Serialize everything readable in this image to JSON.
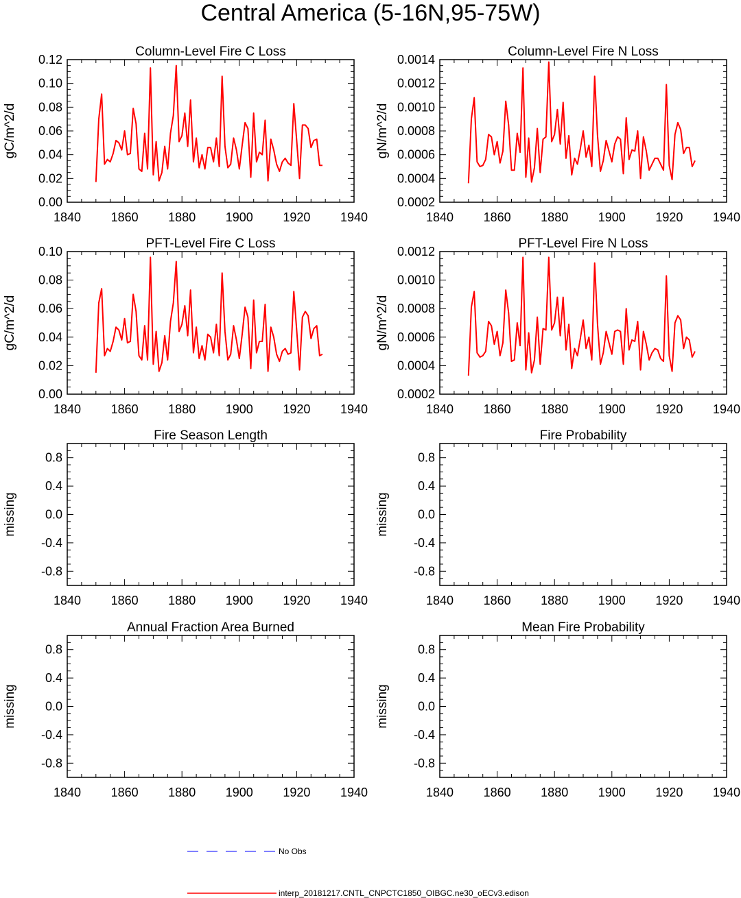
{
  "figure": {
    "title": "Central America (5-16N,95-75W)"
  },
  "legend": {
    "entries": [
      {
        "label": "No Obs",
        "color": "#3333ff",
        "style": "dashed"
      },
      {
        "label": "interp_20181217.CNTL_CNPCTC1850_OIBGC.ne30_oECv3.edison",
        "color": "#ff0000",
        "style": "solid"
      }
    ]
  },
  "chart_data": [
    {
      "type": "line",
      "title": "Column-Level Fire C Loss",
      "ylabel": "gC/m^2/d",
      "xlim": [
        1840,
        1940
      ],
      "ylim": [
        0.0,
        0.12
      ],
      "xticks": [
        "1840",
        "1860",
        "1880",
        "1900",
        "1920",
        "1940"
      ],
      "yticks": [
        {
          "v": 0.0,
          "t": "0.00"
        },
        {
          "v": 0.02,
          "t": "0.02"
        },
        {
          "v": 0.04,
          "t": "0.04"
        },
        {
          "v": 0.06,
          "t": "0.06"
        },
        {
          "v": 0.08,
          "t": "0.08"
        },
        {
          "v": 0.1,
          "t": "0.10"
        },
        {
          "v": 0.12,
          "t": "0.12"
        }
      ],
      "series": [
        {
          "color": "#ff0000",
          "x_start": 1850,
          "values": [
            0.017,
            0.07,
            0.091,
            0.032,
            0.036,
            0.034,
            0.041,
            0.052,
            0.05,
            0.044,
            0.06,
            0.04,
            0.041,
            0.079,
            0.066,
            0.028,
            0.026,
            0.058,
            0.028,
            0.113,
            0.023,
            0.051,
            0.018,
            0.025,
            0.047,
            0.028,
            0.058,
            0.073,
            0.115,
            0.051,
            0.056,
            0.075,
            0.047,
            0.086,
            0.034,
            0.054,
            0.029,
            0.04,
            0.028,
            0.046,
            0.046,
            0.034,
            0.054,
            0.03,
            0.106,
            0.047,
            0.029,
            0.032,
            0.054,
            0.044,
            0.028,
            0.048,
            0.067,
            0.062,
            0.021,
            0.075,
            0.034,
            0.042,
            0.04,
            0.069,
            0.018,
            0.053,
            0.044,
            0.032,
            0.026,
            0.034,
            0.037,
            0.033,
            0.031,
            0.083,
            0.052,
            0.02,
            0.065,
            0.065,
            0.062,
            0.046,
            0.052,
            0.053,
            0.031,
            0.031
          ]
        }
      ]
    },
    {
      "type": "line",
      "title": "Column-Level Fire N Loss",
      "ylabel": "gN/m^2/d",
      "xlim": [
        1840,
        1940
      ],
      "ylim": [
        0.0002,
        0.0014
      ],
      "xticks": [
        "1840",
        "1860",
        "1880",
        "1900",
        "1920",
        "1940"
      ],
      "yticks": [
        {
          "v": 0.0002,
          "t": "0.0002"
        },
        {
          "v": 0.0004,
          "t": "0.0004"
        },
        {
          "v": 0.0006,
          "t": "0.0006"
        },
        {
          "v": 0.0008,
          "t": "0.0008"
        },
        {
          "v": 0.001,
          "t": "0.0010"
        },
        {
          "v": 0.0012,
          "t": "0.0012"
        },
        {
          "v": 0.0014,
          "t": "0.0014"
        }
      ],
      "series": [
        {
          "color": "#ff0000",
          "x_start": 1850,
          "values": [
            0.00036,
            0.0009,
            0.00108,
            0.00054,
            0.0005,
            0.00051,
            0.00056,
            0.00077,
            0.00075,
            0.0006,
            0.00071,
            0.00053,
            0.00063,
            0.00105,
            0.00085,
            0.00047,
            0.00047,
            0.00078,
            0.00062,
            0.00133,
            0.00041,
            0.00074,
            0.00037,
            0.00049,
            0.00082,
            0.00045,
            0.00073,
            0.00075,
            0.00138,
            0.00071,
            0.00077,
            0.00098,
            0.00069,
            0.00104,
            0.00057,
            0.00076,
            0.00043,
            0.00057,
            0.00052,
            0.00065,
            0.0008,
            0.00058,
            0.00068,
            0.0005,
            0.00126,
            0.00076,
            0.00046,
            0.00055,
            0.00072,
            0.00063,
            0.00054,
            0.00069,
            0.00075,
            0.00073,
            0.00044,
            0.00091,
            0.00056,
            0.00064,
            0.00063,
            0.0008,
            0.0004,
            0.00075,
            0.00063,
            0.00047,
            0.00052,
            0.00057,
            0.00057,
            0.00052,
            0.00047,
            0.00119,
            0.00051,
            0.00039,
            0.00077,
            0.00087,
            0.00081,
            0.00061,
            0.00066,
            0.00066,
            0.0005,
            0.00055
          ]
        }
      ]
    },
    {
      "type": "line",
      "title": "PFT-Level Fire C Loss",
      "ylabel": "gC/m^2/d",
      "xlim": [
        1840,
        1940
      ],
      "ylim": [
        0.0,
        0.1
      ],
      "xticks": [
        "1840",
        "1860",
        "1880",
        "1900",
        "1920",
        "1940"
      ],
      "yticks": [
        {
          "v": 0.0,
          "t": "0.00"
        },
        {
          "v": 0.02,
          "t": "0.02"
        },
        {
          "v": 0.04,
          "t": "0.04"
        },
        {
          "v": 0.06,
          "t": "0.06"
        },
        {
          "v": 0.08,
          "t": "0.08"
        },
        {
          "v": 0.1,
          "t": "0.10"
        }
      ],
      "series": [
        {
          "color": "#ff0000",
          "x_start": 1850,
          "values": [
            0.015,
            0.064,
            0.074,
            0.027,
            0.032,
            0.03,
            0.037,
            0.047,
            0.045,
            0.038,
            0.053,
            0.036,
            0.037,
            0.07,
            0.058,
            0.027,
            0.024,
            0.048,
            0.024,
            0.096,
            0.021,
            0.044,
            0.016,
            0.022,
            0.041,
            0.024,
            0.051,
            0.064,
            0.093,
            0.044,
            0.049,
            0.062,
            0.041,
            0.073,
            0.029,
            0.047,
            0.025,
            0.034,
            0.024,
            0.042,
            0.04,
            0.029,
            0.049,
            0.027,
            0.085,
            0.044,
            0.024,
            0.028,
            0.048,
            0.038,
            0.025,
            0.042,
            0.061,
            0.054,
            0.018,
            0.066,
            0.029,
            0.037,
            0.037,
            0.063,
            0.016,
            0.047,
            0.04,
            0.028,
            0.023,
            0.03,
            0.032,
            0.028,
            0.029,
            0.072,
            0.045,
            0.017,
            0.054,
            0.058,
            0.055,
            0.039,
            0.046,
            0.048,
            0.027,
            0.028
          ]
        }
      ]
    },
    {
      "type": "line",
      "title": "PFT-Level Fire N Loss",
      "ylabel": "gN/m^2/d",
      "xlim": [
        1840,
        1940
      ],
      "ylim": [
        0.0002,
        0.0012
      ],
      "xticks": [
        "1840",
        "1860",
        "1880",
        "1900",
        "1920",
        "1940"
      ],
      "yticks": [
        {
          "v": 0.0002,
          "t": "0.0002"
        },
        {
          "v": 0.0004,
          "t": "0.0004"
        },
        {
          "v": 0.0006,
          "t": "0.0006"
        },
        {
          "v": 0.0008,
          "t": "0.0008"
        },
        {
          "v": 0.001,
          "t": "0.0010"
        },
        {
          "v": 0.0012,
          "t": "0.0012"
        }
      ],
      "series": [
        {
          "color": "#ff0000",
          "x_start": 1850,
          "values": [
            0.00033,
            0.00081,
            0.00092,
            0.00049,
            0.00046,
            0.00047,
            0.0005,
            0.00071,
            0.00068,
            0.00055,
            0.00064,
            0.00047,
            0.00056,
            0.00093,
            0.00077,
            0.00043,
            0.00044,
            0.0007,
            0.00054,
            0.00116,
            0.00037,
            0.00063,
            0.00035,
            0.00044,
            0.00074,
            0.00041,
            0.00066,
            0.00065,
            0.00116,
            0.00065,
            0.0007,
            0.00088,
            0.00061,
            0.00088,
            0.00051,
            0.00069,
            0.00038,
            0.00052,
            0.00047,
            0.00059,
            0.00072,
            0.00052,
            0.0006,
            0.00044,
            0.00112,
            0.00069,
            0.00041,
            0.00049,
            0.00064,
            0.00056,
            0.00048,
            0.00064,
            0.00065,
            0.00064,
            0.00041,
            0.0008,
            0.00051,
            0.00058,
            0.00057,
            0.00071,
            0.00037,
            0.00064,
            0.00055,
            0.00044,
            0.00049,
            0.00052,
            0.00051,
            0.00045,
            0.00043,
            0.00103,
            0.00047,
            0.00036,
            0.0007,
            0.00075,
            0.00072,
            0.00052,
            0.0006,
            0.00058,
            0.00046,
            0.0005
          ]
        }
      ]
    },
    {
      "type": "line",
      "title": "Fire Season Length",
      "ylabel": "missing",
      "xlim": [
        1840,
        1940
      ],
      "ylim": [
        -1.0,
        1.0
      ],
      "xticks": [
        "1840",
        "1860",
        "1880",
        "1900",
        "1920",
        "1940"
      ],
      "yticks": [
        {
          "v": -0.8,
          "t": "-0.8"
        },
        {
          "v": -0.4,
          "t": "-0.4"
        },
        {
          "v": 0.0,
          "t": "0.0"
        },
        {
          "v": 0.4,
          "t": "0.4"
        },
        {
          "v": 0.8,
          "t": "0.8"
        }
      ],
      "series": []
    },
    {
      "type": "line",
      "title": "Fire Probability",
      "ylabel": "missing",
      "xlim": [
        1840,
        1940
      ],
      "ylim": [
        -1.0,
        1.0
      ],
      "xticks": [
        "1840",
        "1860",
        "1880",
        "1900",
        "1920",
        "1940"
      ],
      "yticks": [
        {
          "v": -0.8,
          "t": "-0.8"
        },
        {
          "v": -0.4,
          "t": "-0.4"
        },
        {
          "v": 0.0,
          "t": "0.0"
        },
        {
          "v": 0.4,
          "t": "0.4"
        },
        {
          "v": 0.8,
          "t": "0.8"
        }
      ],
      "series": []
    },
    {
      "type": "line",
      "title": "Annual Fraction Area Burned",
      "ylabel": "missing",
      "xlim": [
        1840,
        1940
      ],
      "ylim": [
        -1.0,
        1.0
      ],
      "xticks": [
        "1840",
        "1860",
        "1880",
        "1900",
        "1920",
        "1940"
      ],
      "yticks": [
        {
          "v": -0.8,
          "t": "-0.8"
        },
        {
          "v": -0.4,
          "t": "-0.4"
        },
        {
          "v": 0.0,
          "t": "0.0"
        },
        {
          "v": 0.4,
          "t": "0.4"
        },
        {
          "v": 0.8,
          "t": "0.8"
        }
      ],
      "series": []
    },
    {
      "type": "line",
      "title": "Mean Fire Probability",
      "ylabel": "missing",
      "xlim": [
        1840,
        1940
      ],
      "ylim": [
        -1.0,
        1.0
      ],
      "xticks": [
        "1840",
        "1860",
        "1880",
        "1900",
        "1920",
        "1940"
      ],
      "yticks": [
        {
          "v": -0.8,
          "t": "-0.8"
        },
        {
          "v": -0.4,
          "t": "-0.4"
        },
        {
          "v": 0.0,
          "t": "0.0"
        },
        {
          "v": 0.4,
          "t": "0.4"
        },
        {
          "v": 0.8,
          "t": "0.8"
        }
      ],
      "series": []
    }
  ]
}
